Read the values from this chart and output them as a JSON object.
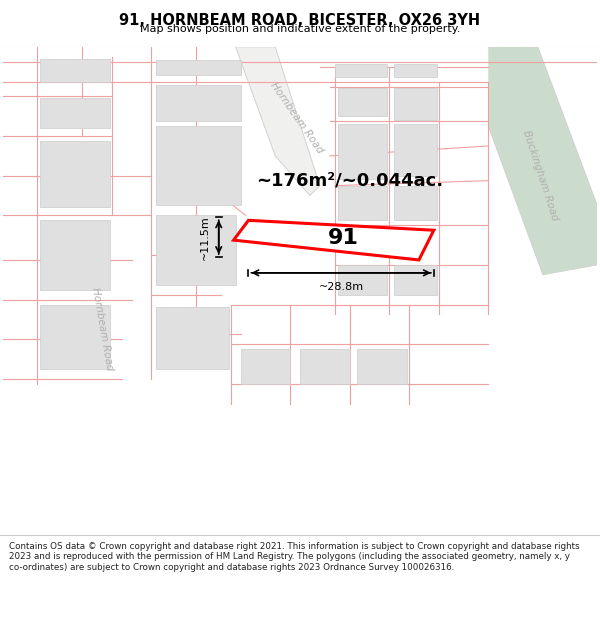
{
  "title": "91, HORNBEAM ROAD, BICESTER, OX26 3YH",
  "subtitle": "Map shows position and indicative extent of the property.",
  "footer": "Contains OS data © Crown copyright and database right 2021. This information is subject to Crown copyright and database rights 2023 and is reproduced with the permission of HM Land Registry. The polygons (including the associated geometry, namely x, y co-ordinates) are subject to Crown copyright and database rights 2023 Ordnance Survey 100026316.",
  "area_label": "~176m²/~0.044ac.",
  "plot_number": "91",
  "width_label": "~28.8m",
  "height_label": "~11.5m",
  "map_bg": "#ffffff",
  "road_green_color": "#ccdccc",
  "road_line_color": "#aaaaaa",
  "plot_outline_color": "#ff0000",
  "building_fill_color": "#e0e0e0",
  "building_edge_color": "#cccccc",
  "parcel_line_color": "#f0a0a0",
  "title_color": "#000000",
  "annotation_color": "#000000",
  "road_label_color": "#b0b0b0"
}
